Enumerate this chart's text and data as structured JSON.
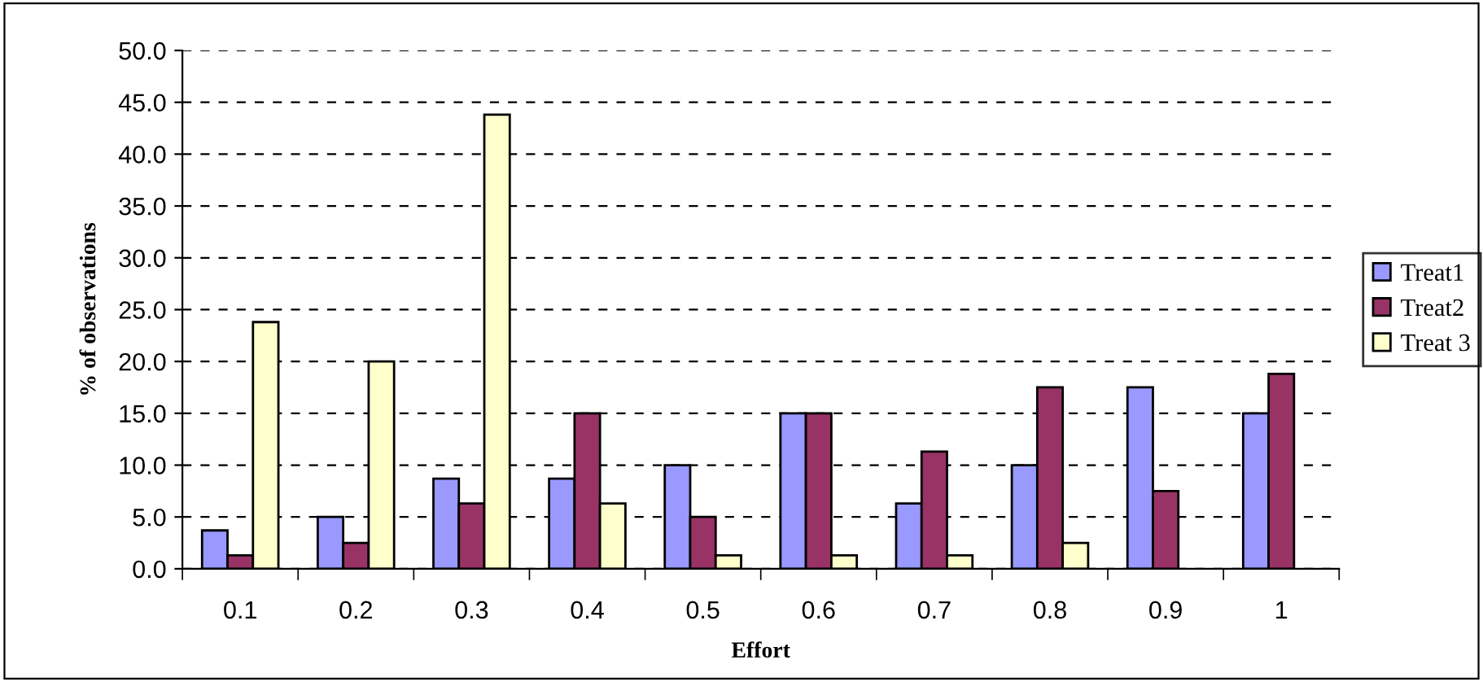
{
  "chart_data": {
    "type": "bar",
    "xlabel": "Effort",
    "ylabel": "% of observations",
    "categories": [
      "0.1",
      "0.2",
      "0.3",
      "0.4",
      "0.5",
      "0.6",
      "0.7",
      "0.8",
      "0.9",
      "1"
    ],
    "series": [
      {
        "name": "Treat1",
        "color": "#9999ff",
        "values": [
          3.7,
          5.0,
          8.7,
          8.7,
          10.0,
          15.0,
          6.3,
          10.0,
          17.5,
          15.0
        ]
      },
      {
        "name": "Treat2",
        "color": "#993366",
        "values": [
          1.3,
          2.5,
          6.3,
          15.0,
          5.0,
          15.0,
          11.3,
          17.5,
          7.5,
          18.8
        ]
      },
      {
        "name": "Treat 3",
        "color": "#ffffcc",
        "values": [
          23.8,
          20.0,
          43.8,
          6.3,
          1.3,
          1.3,
          1.3,
          2.5,
          null,
          null
        ]
      }
    ],
    "ylim": [
      0,
      50
    ],
    "yticks": [
      {
        "value": 0,
        "label": "0.0"
      },
      {
        "value": 5,
        "label": "5.0"
      },
      {
        "value": 10,
        "label": "10.0"
      },
      {
        "value": 15,
        "label": "15.0"
      },
      {
        "value": 20,
        "label": "20.0"
      },
      {
        "value": 25,
        "label": "25.0"
      },
      {
        "value": 30,
        "label": "30.0"
      },
      {
        "value": 35,
        "label": "35.0"
      },
      {
        "value": 40,
        "label": "40.0"
      },
      {
        "value": 45,
        "label": "45.0"
      },
      {
        "value": 50,
        "label": "50.0"
      }
    ],
    "grid": "y",
    "legend": "right"
  }
}
